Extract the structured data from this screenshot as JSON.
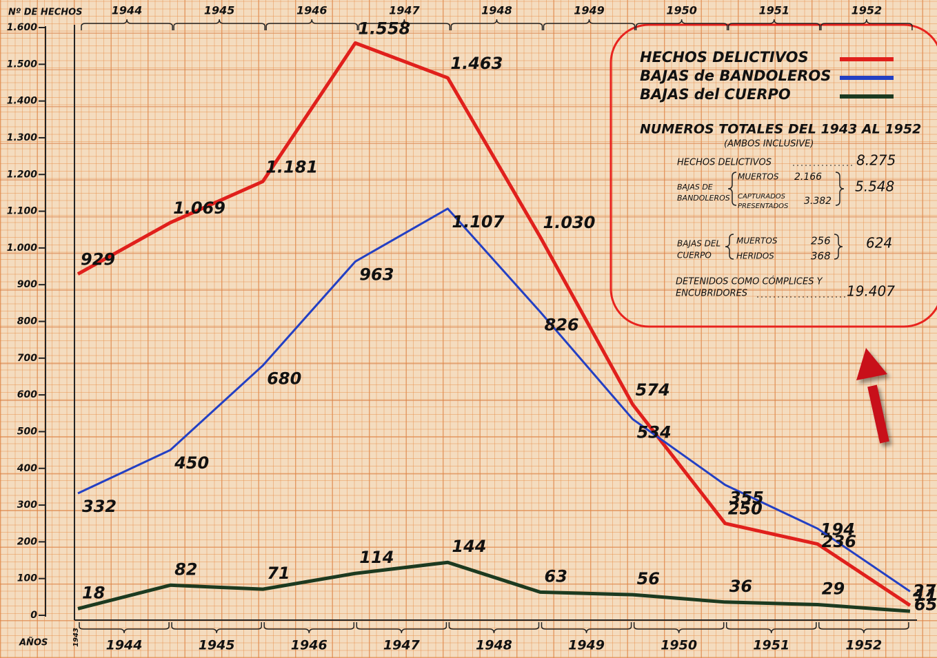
{
  "chart_data": {
    "type": "line",
    "ylabel": "Nº DE HECHOS",
    "xlabel": "AÑOS",
    "categories": [
      "1943",
      "1944",
      "1945",
      "1946",
      "1947",
      "1948",
      "1949",
      "1950",
      "1951",
      "1952"
    ],
    "top_axis_labels": [
      "1944",
      "1945",
      "1946",
      "1947",
      "1948",
      "1949",
      "1950",
      "1951",
      "1952"
    ],
    "ylim": [
      0,
      1600
    ],
    "yticks": [
      0,
      100,
      200,
      300,
      400,
      500,
      600,
      700,
      800,
      900,
      {
        "value": 1000,
        "label": "1.000"
      },
      {
        "value": 1100,
        "label": "1.100"
      },
      {
        "value": 1200,
        "label": "1.200"
      },
      {
        "value": 1300,
        "label": "1.300"
      },
      {
        "value": 1400,
        "label": "1.400"
      },
      {
        "value": 1500,
        "label": "1.500"
      },
      {
        "value": 1600,
        "label": "1.600"
      }
    ],
    "series": [
      {
        "name": "HECHOS DELICTIVOS",
        "color": "#e0201c",
        "values": [
          929,
          1069,
          1181,
          1558,
          1463,
          1030,
          574,
          250,
          194,
          27
        ],
        "value_labels": [
          "929",
          "1.069",
          "1.181",
          "1.558",
          "1.463",
          "1.030",
          "574",
          "250",
          "194",
          "27"
        ]
      },
      {
        "name": "BAJAS de BANDOLEROS",
        "color": "#2340c4",
        "values": [
          332,
          450,
          680,
          963,
          1107,
          826,
          534,
          355,
          236,
          65
        ],
        "value_labels": [
          "332",
          "450",
          "680",
          "963",
          "1.107",
          "826",
          "534",
          "355",
          "236",
          "65"
        ]
      },
      {
        "name": "BAJAS del CUERPO",
        "color": "#1c3a20",
        "values": [
          18,
          82,
          71,
          114,
          144,
          63,
          56,
          36,
          29,
          11
        ],
        "value_labels": [
          "18",
          "82",
          "71",
          "114",
          "144",
          "63",
          "56",
          "36",
          "29",
          "11"
        ]
      }
    ],
    "totals": {
      "title": "NUMEROS TOTALES DEL 1943 AL 1952",
      "subtitle": "(AMBOS INCLUSIVE)",
      "hechos": {
        "label": "HECHOS DELICTIVOS",
        "total": "8.275"
      },
      "bandoleros": {
        "label": [
          "BAJAS DE",
          "BANDOLEROS"
        ],
        "muertos": "MUERTOS",
        "muertos_value": "2.166",
        "capturados": [
          "CAPTURADOS",
          "PRESENTADOS"
        ],
        "capturados_value": "3.382",
        "total": "5.548"
      },
      "cuerpo": {
        "label": [
          "BAJAS DEL",
          "CUERPO"
        ],
        "muertos": "MUERTOS",
        "muertos_value": "256",
        "heridos": "HERIDOS",
        "heridos_value": "368",
        "total": "624"
      },
      "detenidos": {
        "label": [
          "DETENIDOS COMO CÓMPLICES Y",
          "ENCUBRIDORES"
        ],
        "total": "19.407"
      }
    }
  }
}
